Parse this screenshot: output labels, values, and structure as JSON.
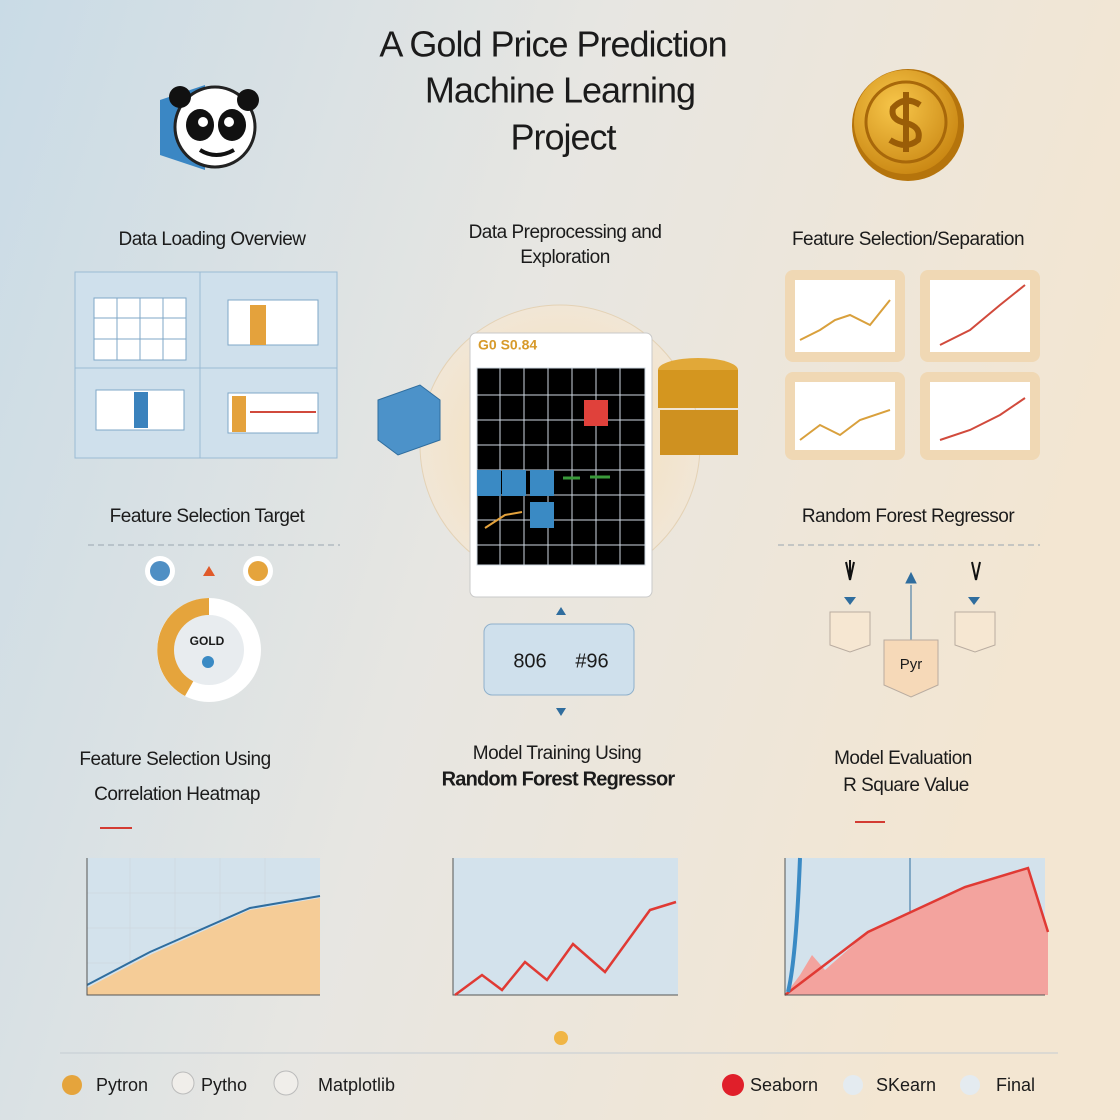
{
  "header": {
    "title_lines": [
      "A Gold Price Prediction",
      "Machine Learning",
      "Project"
    ]
  },
  "sections": [
    {
      "title_lines": [
        "Data Loading Overview"
      ]
    },
    {
      "title_lines": [
        "Data Preprocessing and",
        "Exploration"
      ]
    },
    {
      "title_lines": [
        "Feature Selection/Separation"
      ]
    },
    {
      "title_lines": [
        "Feature Selection Target"
      ]
    },
    {
      "title_lines": [
        "Random Forest Regressor"
      ]
    },
    {
      "title_lines": [
        "Feature Selection Using",
        "Correlation Heatmap"
      ]
    },
    {
      "title_lines": [
        "Model Training Using",
        "Random Forest Regressor"
      ]
    },
    {
      "title_lines": [
        "Model Evaluation",
        "R Square Value"
      ]
    }
  ],
  "labels": {
    "preview_title": "G0 S0.84",
    "gold_badge": "GOLD",
    "model_box": "Pyr",
    "result_left": "806",
    "result_right": "#96"
  },
  "footer": {
    "items": [
      "Pytron",
      "Pytho",
      "Matplotlib",
      "Seaborn",
      "SKearn",
      "Final"
    ]
  }
}
